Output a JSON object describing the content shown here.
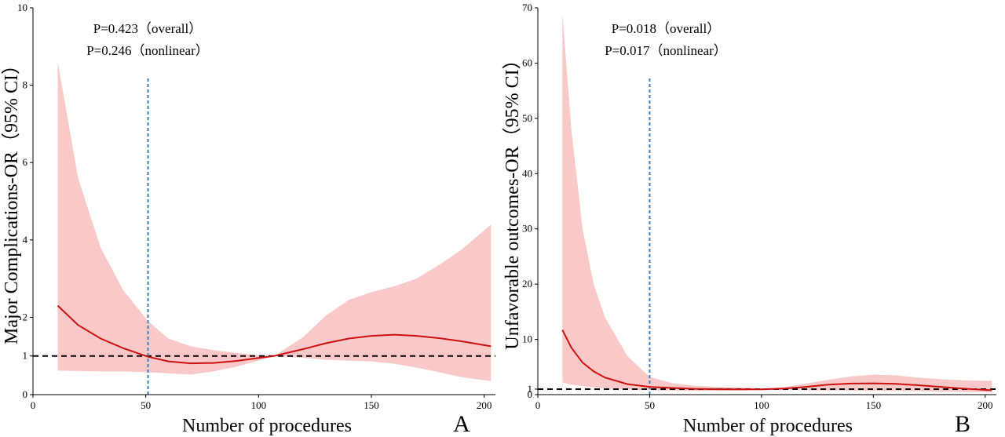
{
  "colors": {
    "band": "#f9c9c9",
    "curve": "#cc1010",
    "cutoff_line": "#3a7fb8",
    "reference_line": "#000000"
  },
  "chart_data": [
    {
      "type": "line",
      "panel_label": "A",
      "xlabel": "Number of procedures",
      "ylabel": "Major Complications-OR（95% CI）",
      "xlim": [
        0,
        205
      ],
      "ylim": [
        0,
        10
      ],
      "xticks": [
        0,
        50,
        100,
        150,
        200
      ],
      "yticks": [
        0,
        1,
        2,
        4,
        6,
        8,
        10
      ],
      "annotations": [
        "P=0.423（overall）",
        "P=0.246（nonlinear）"
      ],
      "reference_line_y": 1,
      "cutoff_line_x": 51,
      "series": [
        {
          "x": [
            11,
            20,
            30,
            40,
            51,
            60,
            70,
            80,
            90,
            100,
            107,
            120,
            130,
            140,
            150,
            160,
            170,
            180,
            190,
            203
          ],
          "values": [
            2.3,
            1.8,
            1.45,
            1.2,
            0.98,
            0.86,
            0.81,
            0.82,
            0.87,
            0.95,
            1.0,
            1.18,
            1.33,
            1.45,
            1.52,
            1.55,
            1.52,
            1.46,
            1.38,
            1.25
          ],
          "lower": [
            0.62,
            0.61,
            0.6,
            0.6,
            0.58,
            0.55,
            0.52,
            0.6,
            0.72,
            0.88,
            1.0,
            0.95,
            0.9,
            0.88,
            0.86,
            0.8,
            0.7,
            0.58,
            0.45,
            0.35
          ],
          "upper": [
            8.6,
            5.6,
            3.8,
            2.7,
            1.9,
            1.45,
            1.25,
            1.15,
            1.08,
            1.02,
            1.0,
            1.5,
            2.05,
            2.45,
            2.65,
            2.8,
            3.0,
            3.35,
            3.75,
            4.4
          ]
        }
      ]
    },
    {
      "type": "line",
      "panel_label": "B",
      "xlabel": "Number of procedures",
      "ylabel": "Unfavorable outcomes-OR（95% CI）",
      "xlim": [
        0,
        205
      ],
      "ylim": [
        0,
        70
      ],
      "xticks": [
        0,
        50,
        100,
        150,
        200
      ],
      "yticks": [
        0,
        1,
        10,
        20,
        30,
        40,
        50,
        60,
        70
      ],
      "annotations": [
        "P=0.018（overall）",
        "P=0.017（nonlinear）"
      ],
      "reference_line_y": 1,
      "cutoff_line_x": 50,
      "series": [
        {
          "x": [
            11,
            15,
            20,
            25,
            30,
            40,
            50,
            60,
            70,
            80,
            90,
            100,
            110,
            120,
            130,
            140,
            150,
            160,
            170,
            180,
            190,
            200,
            203
          ],
          "values": [
            11.7,
            8.5,
            5.8,
            4.2,
            3.1,
            1.9,
            1.4,
            1.2,
            1.05,
            0.98,
            0.96,
            0.96,
            1.1,
            1.4,
            1.8,
            2.0,
            2.05,
            1.95,
            1.7,
            1.4,
            1.1,
            0.85,
            0.8
          ],
          "lower": [
            2.2,
            1.8,
            1.5,
            1.3,
            1.1,
            0.9,
            0.8,
            0.72,
            0.68,
            0.68,
            0.72,
            0.85,
            0.9,
            0.8,
            0.75,
            0.72,
            0.7,
            0.68,
            0.62,
            0.55,
            0.48,
            0.42,
            0.4
          ],
          "upper": [
            69,
            48,
            30,
            20,
            14,
            7,
            3.2,
            2.1,
            1.6,
            1.4,
            1.3,
            1.1,
            1.35,
            2.0,
            2.7,
            3.3,
            3.6,
            3.5,
            3.1,
            2.8,
            2.6,
            2.5,
            2.5
          ]
        }
      ]
    }
  ]
}
